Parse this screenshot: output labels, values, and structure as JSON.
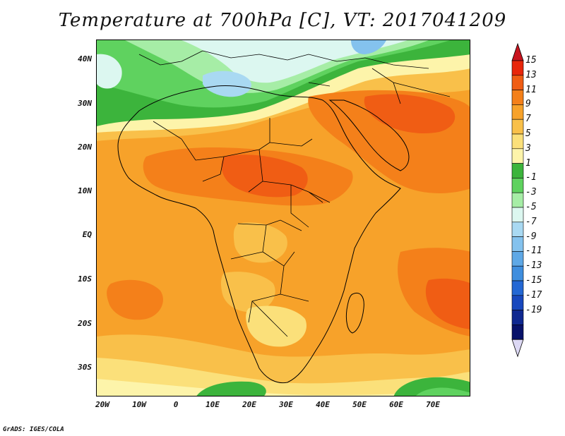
{
  "title": "Temperature at 700hPa [C], VT: 2017041209",
  "credit": "GrADS: IGES/COLA",
  "lat_labels": [
    "40N",
    "30N",
    "20N",
    "10N",
    "EQ",
    "10S",
    "20S",
    "30S"
  ],
  "lon_labels": [
    "20W",
    "10W",
    "0",
    "10E",
    "20E",
    "30E",
    "40E",
    "50E",
    "60E",
    "70E"
  ],
  "colorbar": {
    "labels": [
      "15",
      "13",
      "11",
      "9",
      "7",
      "5",
      "3",
      "1",
      "-1",
      "-3",
      "-5",
      "-7",
      "-9",
      "-11",
      "-13",
      "-15",
      "-17",
      "-19"
    ],
    "colors": [
      "#e8260a",
      "#f05d14",
      "#f4801a",
      "#f7a22a",
      "#f9c04a",
      "#fbe07a",
      "#fdf4aa",
      "#3cb43c",
      "#5fd25f",
      "#a6eda6",
      "#dcf7f0",
      "#a9d9f2",
      "#84c2ee",
      "#5ea8e6",
      "#3f8ede",
      "#2468d4",
      "#1848be",
      "#0f2890",
      "#08126a"
    ],
    "over_color": "#c8141e",
    "under_color": "#dcd8f4"
  }
}
